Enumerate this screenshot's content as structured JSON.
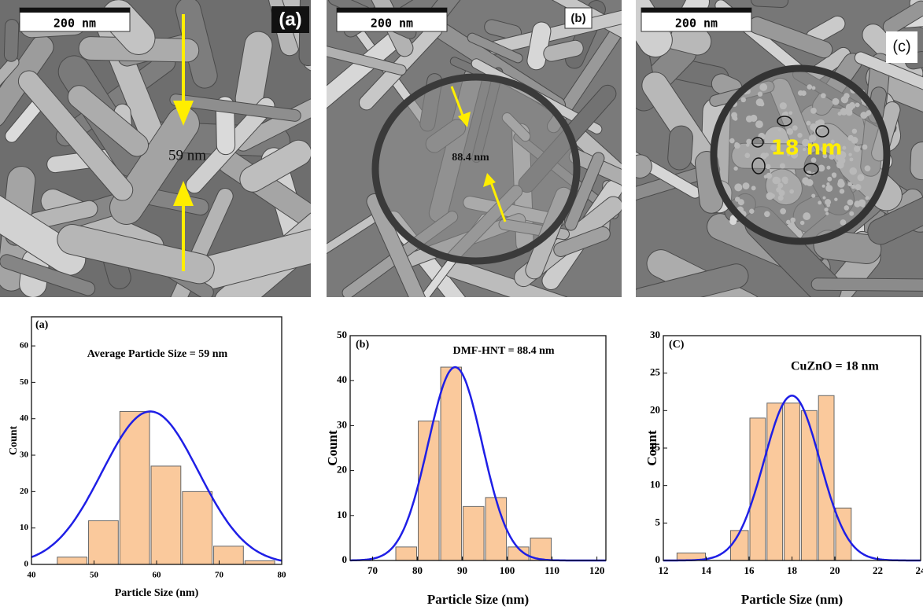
{
  "micrographs": [
    {
      "scale": "200 nm",
      "label": "(a)",
      "measure": "59 nm"
    },
    {
      "scale": "200 nm",
      "label": "(b)",
      "measure": "88.4 nm"
    },
    {
      "scale": "200 nm",
      "label": "(c)",
      "measure": "18 nm"
    }
  ],
  "chart_data": [
    {
      "type": "histogram",
      "panel_label": "(a)",
      "annotation": "Average Particle Size = 59 nm",
      "xlabel": "Particle Size (nm)",
      "ylabel": "Count",
      "bins": [
        44,
        49,
        54,
        59,
        64,
        69,
        74,
        79
      ],
      "values": [
        2,
        12,
        42,
        27,
        20,
        5,
        1
      ],
      "color": "#fac99c",
      "edge_color": "#666666",
      "fit": {
        "mean": 59,
        "sd": 7.7,
        "peak": 42,
        "color": "#1f1fe6"
      },
      "xlim": [
        40,
        80
      ],
      "xticks": [
        40,
        50,
        60,
        70,
        80
      ],
      "ylim": [
        0,
        68
      ],
      "yticks": [
        0,
        10,
        20,
        30,
        40,
        50,
        60
      ]
    },
    {
      "type": "histogram",
      "panel_label": "(b)",
      "annotation": "DMF-HNT  = 88.4 nm",
      "xlabel": "Particle Size (nm)",
      "ylabel": "Count",
      "bins": [
        75,
        80,
        85,
        90,
        95,
        100,
        105,
        110
      ],
      "values": [
        3,
        31,
        43,
        12,
        14,
        3,
        5
      ],
      "color": "#fac99c",
      "edge_color": "#666666",
      "fit": {
        "mean": 88.4,
        "sd": 6,
        "peak": 43,
        "color": "#1f1fe6"
      },
      "xlim": [
        65,
        122
      ],
      "xticks": [
        70,
        80,
        90,
        100,
        110,
        120
      ],
      "ylim": [
        0,
        50
      ],
      "yticks": [
        0,
        10,
        20,
        30,
        40,
        50
      ]
    },
    {
      "type": "histogram",
      "panel_label": "(C)",
      "annotation": "CuZnO = 18 nm",
      "xlabel": "Particle Size (nm)",
      "ylabel": "Count",
      "bins": [
        12.6,
        14,
        15.1,
        16,
        16.8,
        17.6,
        18.4,
        19.2,
        20,
        20.8
      ],
      "values": [
        1,
        0,
        4,
        19,
        21,
        21,
        20,
        22,
        7
      ],
      "color": "#fac99c",
      "edge_color": "#666666",
      "fit": {
        "mean": 18,
        "sd": 1.3,
        "peak": 22,
        "color": "#1f1fe6"
      },
      "xlim": [
        12,
        24
      ],
      "xticks": [
        12,
        14,
        16,
        18,
        20,
        22,
        24
      ],
      "ylim": [
        0,
        30
      ],
      "yticks": [
        0,
        5,
        10,
        15,
        20,
        25,
        30
      ]
    }
  ]
}
